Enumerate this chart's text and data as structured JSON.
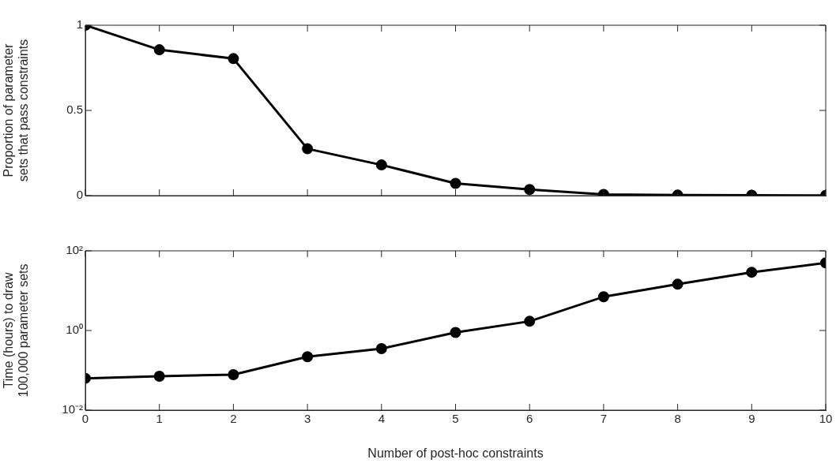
{
  "chart_data": [
    {
      "type": "line",
      "ylabel": "Proportion of parameter\nsets that pass constraints",
      "x": [
        0,
        1,
        2,
        3,
        4,
        5,
        6,
        7,
        8,
        9,
        10
      ],
      "series": [
        {
          "color": "#000000",
          "values": [
            1,
            0.856,
            0.804,
            0.275,
            0.18,
            0.072,
            0.036,
            0.007,
            0.003,
            0.002,
            0.001
          ]
        }
      ],
      "xlim": [
        0,
        10
      ],
      "xticks": [
        0,
        1,
        2,
        3,
        4,
        5,
        6,
        7,
        8,
        9,
        10
      ],
      "ylim": [
        0,
        1
      ],
      "yticks": [
        0,
        0.5,
        1
      ],
      "tick_labels": "y",
      "grid": false,
      "legend": false,
      "marker": "circle",
      "line_style": "solid"
    },
    {
      "type": "line",
      "xlabel": "Number of post-hoc constraints",
      "ylabel": "Time (hours) to draw\n100,000 parameter sets",
      "x": [
        0,
        1,
        2,
        3,
        4,
        5,
        6,
        7,
        8,
        9,
        10
      ],
      "series": [
        {
          "color": "#000000",
          "values": [
            0.063,
            0.071,
            0.078,
            0.22,
            0.35,
            0.89,
            1.7,
            7,
            14.5,
            29,
            50
          ]
        }
      ],
      "xlim": [
        0,
        10
      ],
      "xticks": [
        0,
        1,
        2,
        3,
        4,
        5,
        6,
        7,
        8,
        9,
        10
      ],
      "ylim": [
        0.01,
        100
      ],
      "yticks": [
        {
          "value": 0.01,
          "label": "10⁻²"
        },
        {
          "value": 1,
          "label": "10⁰"
        },
        {
          "value": 100,
          "label": "10²"
        }
      ],
      "log": "y",
      "grid": false,
      "legend": false,
      "marker": "circle",
      "line_style": "solid"
    }
  ]
}
